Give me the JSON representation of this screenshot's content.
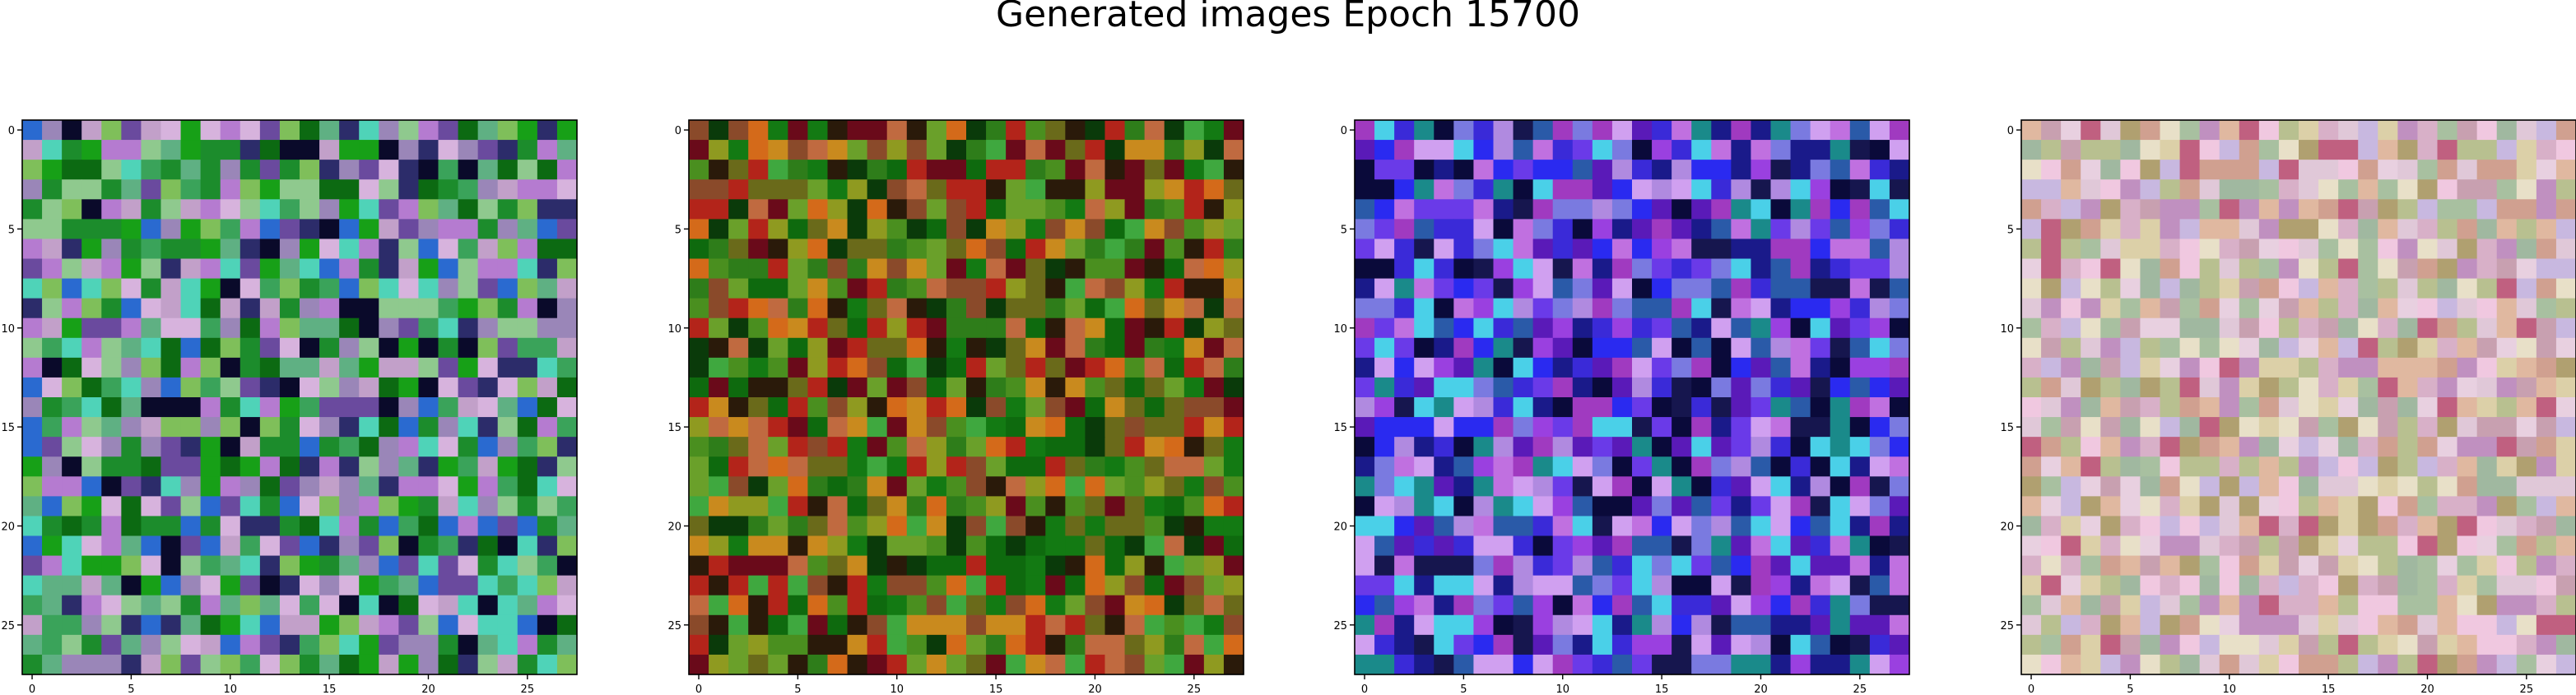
{
  "title": "Generated images Epoch 15700",
  "chart_data": [
    {
      "type": "heatmap",
      "xlim": [
        -0.5,
        27.5
      ],
      "ylim": [
        27.5,
        -0.5
      ],
      "xticks": [
        0,
        5,
        10,
        15,
        20,
        25
      ],
      "yticks": [
        0,
        5,
        10,
        15,
        20,
        25
      ],
      "palette": [
        "#5fb083",
        "#8fc98e",
        "#3aa35a",
        "#c2a0c9",
        "#9a86b8",
        "#6a4a9e",
        "#1c8c2c",
        "#0c6a12",
        "#d7b3dd",
        "#2c2c6a",
        "#0a0a2a",
        "#4fd3b8",
        "#2a6ad0",
        "#b57bd0",
        "#7fbf5a",
        "#17a017"
      ],
      "grid_size": 28
    },
    {
      "type": "heatmap",
      "xlim": [
        -0.5,
        27.5
      ],
      "ylim": [
        27.5,
        -0.5
      ],
      "xticks": [
        0,
        5,
        10,
        15,
        20,
        25
      ],
      "yticks": [
        0,
        5,
        10,
        15,
        20,
        25
      ],
      "palette": [
        "#2e7d1a",
        "#4a8f1f",
        "#6aa02a",
        "#8f9a20",
        "#c98a1e",
        "#d46a1a",
        "#b3241a",
        "#6a0a1a",
        "#2a1a0a",
        "#0a3a0a",
        "#137a13",
        "#3fa83f",
        "#6a6a1a",
        "#8a4a2a",
        "#c06a40",
        "#0e6a0e"
      ],
      "grid_size": 28
    },
    {
      "type": "heatmap",
      "xlim": [
        -0.5,
        27.5
      ],
      "ylim": [
        27.5,
        -0.5
      ],
      "xticks": [
        0,
        5,
        10,
        15,
        20,
        25
      ],
      "yticks": [
        0,
        5,
        10,
        15,
        20,
        25
      ],
      "palette": [
        "#3a2ad8",
        "#6a3ae8",
        "#9a40e0",
        "#c070e0",
        "#1a1a8a",
        "#0a0a3a",
        "#2a5aa8",
        "#1a8a8a",
        "#b08ae0",
        "#7a7ae0",
        "#5a1ab8",
        "#2a2af0",
        "#d0a0f0",
        "#4ad0e8",
        "#a03ac0",
        "#16164e"
      ],
      "grid_size": 28
    },
    {
      "type": "heatmap",
      "xlim": [
        -0.5,
        27.5
      ],
      "ylim": [
        27.5,
        -0.5
      ],
      "xticks": [
        0,
        5,
        10,
        15,
        20,
        25
      ],
      "yticks": [
        0,
        5,
        10,
        15,
        20,
        25
      ],
      "palette": [
        "#d8b0c8",
        "#e0c8d8",
        "#c8a0b0",
        "#b8c090",
        "#e8d0e0",
        "#c090c0",
        "#d0a090",
        "#a8c0a0",
        "#e8e0c8",
        "#c06080",
        "#f0c8e0",
        "#b0a070",
        "#dcd0a8",
        "#c8b8e0",
        "#a0b8a0",
        "#e0b8a0"
      ],
      "grid_size": 28
    }
  ]
}
